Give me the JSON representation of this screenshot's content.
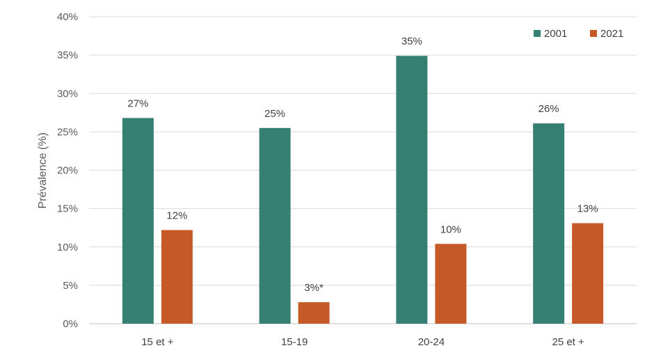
{
  "chart_data": {
    "type": "bar",
    "title": "",
    "xlabel": "",
    "ylabel": "Prévalence (%)",
    "ylim": [
      0,
      40
    ],
    "yticks": [
      {
        "value": 0,
        "label": "0%"
      },
      {
        "value": 5,
        "label": "5%"
      },
      {
        "value": 10,
        "label": "10%"
      },
      {
        "value": 15,
        "label": "15%"
      },
      {
        "value": 20,
        "label": "20%"
      },
      {
        "value": 25,
        "label": "25%"
      },
      {
        "value": 30,
        "label": "30%"
      },
      {
        "value": 35,
        "label": "35%"
      },
      {
        "value": 40,
        "label": "40%"
      }
    ],
    "categories": [
      "15 et +",
      "15-19",
      "20-24",
      "25 et +"
    ],
    "grid": true,
    "legend_position": "top-right",
    "series": [
      {
        "name": "2001",
        "color": "#367f73",
        "values": [
          26.8,
          25.5,
          34.9,
          26.1
        ],
        "labels": [
          "27%",
          "25%",
          "35%",
          "26%"
        ]
      },
      {
        "name": "2021",
        "color": "#c55a28",
        "values": [
          12.2,
          2.8,
          10.4,
          13.1
        ],
        "labels": [
          "12%",
          "3%*",
          "10%",
          "13%"
        ]
      }
    ]
  }
}
